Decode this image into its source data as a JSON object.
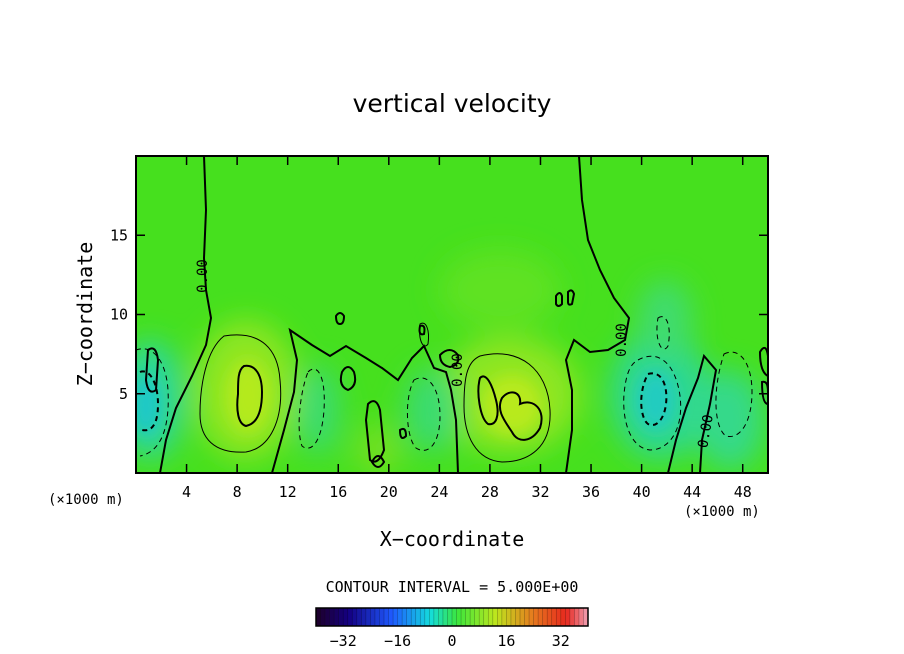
{
  "chart_data": {
    "type": "heatmap",
    "title": "vertical velocity",
    "xlabel": "X−coordinate",
    "ylabel": "Z−coordinate",
    "x_unit_left": "(×1000 m)",
    "x_unit_right": "(×1000 m)",
    "xlim": [
      0,
      50
    ],
    "ylim": [
      0,
      20
    ],
    "x_ticks": [
      4,
      8,
      12,
      16,
      20,
      24,
      28,
      32,
      36,
      40,
      44,
      48
    ],
    "y_ticks": [
      5,
      10,
      15
    ],
    "contour_interval_text": "CONTOUR INTERVAL = 5.000E+00",
    "contour_labels": [
      "0.00",
      "0.00",
      "0.00",
      "0.00",
      "0.00"
    ],
    "colorbar": {
      "range": [
        -40,
        40
      ],
      "ticks": [
        -32,
        -16,
        0,
        16,
        32
      ],
      "tick_labels": [
        "−32",
        "−16",
        "0",
        "16",
        "32"
      ]
    },
    "features": [
      {
        "kind": "updraft",
        "x": 8.8,
        "z": 4.5,
        "peak": 10
      },
      {
        "kind": "updraft",
        "x": 29.5,
        "z": 4.5,
        "peak": 11
      },
      {
        "kind": "updraft",
        "x": 19,
        "z": 1.2,
        "peak": 5
      },
      {
        "kind": "downdraft",
        "x": 1.0,
        "z": 4.5,
        "peak": -14
      },
      {
        "kind": "downdraft",
        "x": 41.5,
        "z": 4.5,
        "peak": -12
      },
      {
        "kind": "downdraft",
        "x": 46.5,
        "z": 4.0,
        "peak": -9
      },
      {
        "kind": "downdraft",
        "x": 14.5,
        "z": 3.5,
        "peak": -5
      },
      {
        "kind": "downdraft",
        "x": 23.5,
        "z": 3.5,
        "peak": -5
      }
    ]
  }
}
